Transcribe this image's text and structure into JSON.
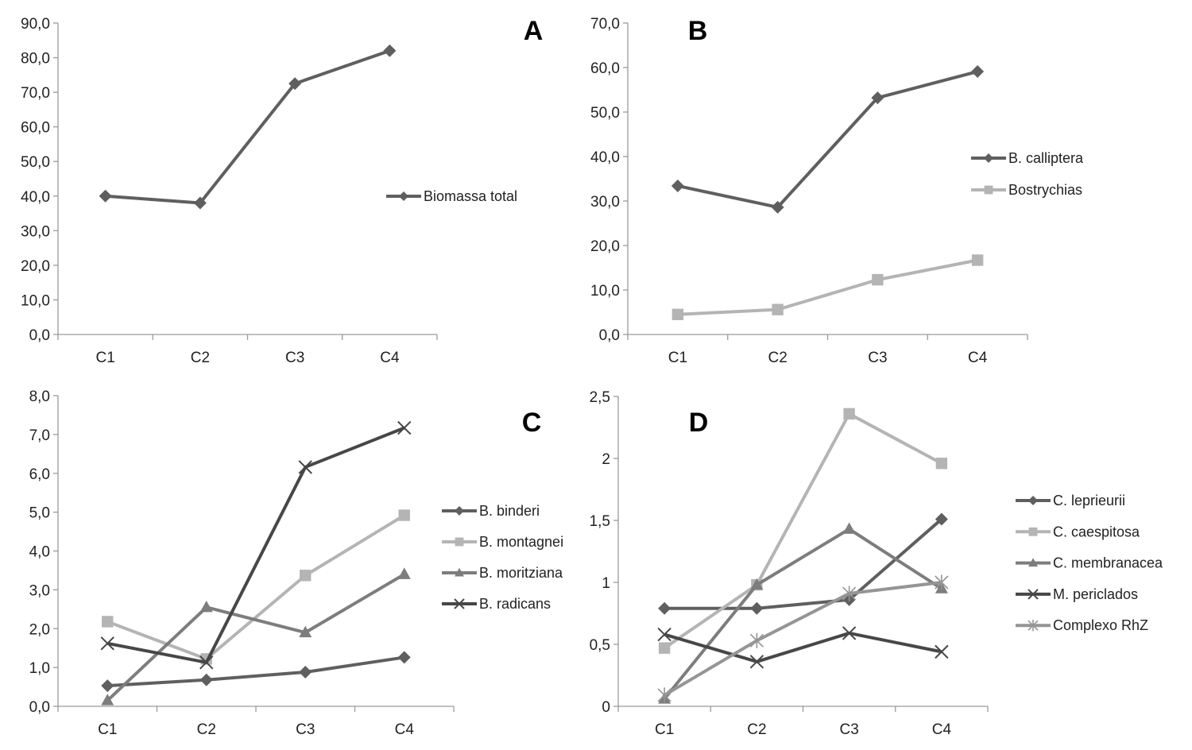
{
  "chart_data": [
    {
      "panel": "A",
      "type": "line",
      "title": "",
      "xlabel": "",
      "ylabel": "",
      "categories": [
        "C1",
        "C2",
        "C3",
        "C4"
      ],
      "ylim": [
        0,
        90
      ],
      "ytick_step": 10,
      "ytick_labels": [
        "0,0",
        "10,0",
        "20,0",
        "30,0",
        "40,0",
        "50,0",
        "60,0",
        "70,0",
        "80,0",
        "90,0"
      ],
      "grid": false,
      "legend_position": "right",
      "series": [
        {
          "name": "Biomassa total",
          "marker": "diamond",
          "color": "#5f5f5f",
          "values": [
            40.0,
            38.0,
            72.5,
            82.0
          ]
        }
      ]
    },
    {
      "panel": "B",
      "type": "line",
      "title": "",
      "xlabel": "",
      "ylabel": "",
      "categories": [
        "C1",
        "C2",
        "C3",
        "C4"
      ],
      "ylim": [
        0,
        70
      ],
      "ytick_step": 10,
      "ytick_labels": [
        "0,0",
        "10,0",
        "20,0",
        "30,0",
        "40,0",
        "50,0",
        "60,0",
        "70,0"
      ],
      "grid": false,
      "legend_position": "right",
      "series": [
        {
          "name": "B. calliptera",
          "marker": "diamond",
          "color": "#5f5f5f",
          "values": [
            33.4,
            28.6,
            53.2,
            59.1
          ]
        },
        {
          "name": "Bostrychias",
          "marker": "square",
          "color": "#b4b4b4",
          "values": [
            4.5,
            5.6,
            12.3,
            16.7
          ]
        }
      ]
    },
    {
      "panel": "C",
      "type": "line",
      "title": "",
      "xlabel": "",
      "ylabel": "",
      "categories": [
        "C1",
        "C2",
        "C3",
        "C4"
      ],
      "ylim": [
        0,
        8
      ],
      "ytick_step": 1,
      "ytick_labels": [
        "0,0",
        "1,0",
        "2,0",
        "3,0",
        "4,0",
        "5,0",
        "6,0",
        "7,0",
        "8,0"
      ],
      "grid": false,
      "legend_position": "right",
      "series": [
        {
          "name": "B. binderi",
          "marker": "diamond",
          "color": "#5f5f5f",
          "values": [
            0.53,
            0.68,
            0.88,
            1.26
          ]
        },
        {
          "name": "B. montagnei",
          "marker": "square",
          "color": "#b4b4b4",
          "values": [
            2.18,
            1.22,
            3.37,
            4.92
          ]
        },
        {
          "name": "B. moritziana",
          "marker": "triangle",
          "color": "#7d7d7d",
          "values": [
            0.15,
            2.55,
            1.9,
            3.4
          ]
        },
        {
          "name": "B. radicans",
          "marker": "x",
          "color": "#474747",
          "values": [
            1.62,
            1.13,
            6.16,
            7.17
          ]
        }
      ]
    },
    {
      "panel": "D",
      "type": "line",
      "title": "",
      "xlabel": "",
      "ylabel": "",
      "categories": [
        "C1",
        "C2",
        "C3",
        "C4"
      ],
      "ylim": [
        0,
        2.5
      ],
      "ytick_step": 0.5,
      "ytick_labels": [
        "0",
        "0,5",
        "1",
        "1,5",
        "2",
        "2,5"
      ],
      "grid": false,
      "legend_position": "right",
      "series": [
        {
          "name": "C. leprieurii",
          "marker": "diamond",
          "color": "#5f5f5f",
          "values": [
            0.79,
            0.79,
            0.86,
            1.51
          ]
        },
        {
          "name": "C. caespitosa",
          "marker": "square",
          "color": "#b4b4b4",
          "values": [
            0.47,
            0.98,
            2.36,
            1.96
          ]
        },
        {
          "name": "C. membranacea",
          "marker": "triangle",
          "color": "#7d7d7d",
          "values": [
            0.06,
            0.98,
            1.43,
            0.95
          ]
        },
        {
          "name": "M. periclados",
          "marker": "x",
          "color": "#474747",
          "values": [
            0.58,
            0.36,
            0.59,
            0.44
          ]
        },
        {
          "name": "Complexo RhZ",
          "marker": "star",
          "color": "#959595",
          "values": [
            0.09,
            0.53,
            0.91,
            1.0
          ]
        }
      ]
    }
  ]
}
